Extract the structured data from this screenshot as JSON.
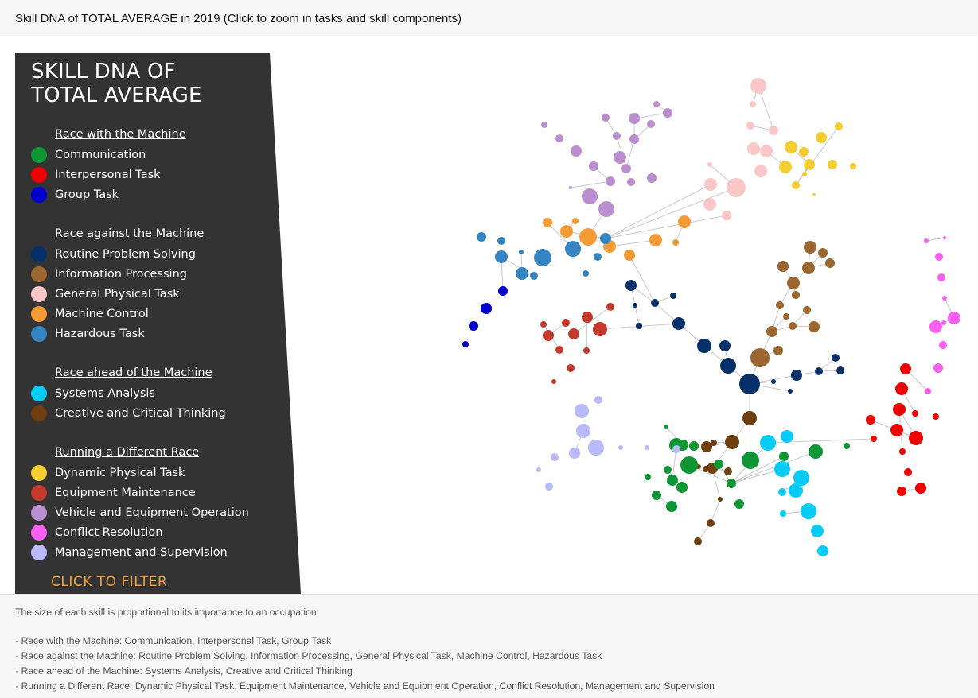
{
  "header": {
    "title": "Skill DNA of TOTAL AVERAGE in 2019 (Click to zoom in tasks and skill components)"
  },
  "legend": {
    "title_line1": "SKILL DNA OF",
    "title_line2": "TOTAL AVERAGE",
    "filter_label": "CLICK TO FILTER",
    "groups": [
      {
        "heading": "Race with the Machine",
        "items": [
          {
            "label": "Communication",
            "color": "#0e9635"
          },
          {
            "label": "Interpersonal Task",
            "color": "#ee0000"
          },
          {
            "label": "Group Task",
            "color": "#0000cc"
          }
        ]
      },
      {
        "heading": "Race against the Machine",
        "items": [
          {
            "label": "Routine Problem Solving",
            "color": "#06306a"
          },
          {
            "label": "Information Processing",
            "color": "#9b6630"
          },
          {
            "label": "General Physical Task",
            "color": "#f9c7c7"
          },
          {
            "label": "Machine Control",
            "color": "#f59b36"
          },
          {
            "label": "Hazardous Task",
            "color": "#3585c3"
          }
        ]
      },
      {
        "heading": "Race ahead of the Machine",
        "items": [
          {
            "label": "Systems Analysis",
            "color": "#06ccf5"
          },
          {
            "label": "Creative and Critical Thinking",
            "color": "#6f3f10"
          }
        ]
      },
      {
        "heading": "Running a Different Race",
        "items": [
          {
            "label": "Dynamic Physical Task",
            "color": "#f3cd32"
          },
          {
            "label": "Equipment Maintenance",
            "color": "#c43a2c"
          },
          {
            "label": "Vehicle and Equipment Operation",
            "color": "#bb8fcf"
          },
          {
            "label": "Conflict Resolution",
            "color": "#fb5ef0"
          },
          {
            "label": "Management and Supervision",
            "color": "#b9baf9"
          }
        ]
      }
    ]
  },
  "footer": {
    "note": "The size of each skill is proportional to its importance to an occupation.",
    "lines": [
      "· Race with the Machine: Communication, Interpersonal Task, Group Task",
      "· Race against the Machine: Routine Problem Solving, Information Processing, General Physical Task, Machine Control, Hazardous Task",
      "· Race ahead of the Machine: Systems Analysis, Creative and Critical Thinking",
      "· Running a Different Race: Dynamic Physical Task, Equipment Maintenance, Vehicle and Equipment Operation, Conflict Resolution, Management and Supervision"
    ]
  }
}
